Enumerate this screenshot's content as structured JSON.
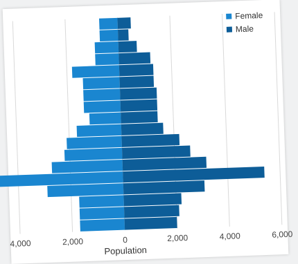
{
  "chart_data": {
    "type": "bar",
    "orientation": "horizontal-pyramid",
    "xlabel": "Population",
    "xlim": [
      -4000,
      6000
    ],
    "xticks": [
      -4000,
      -2000,
      0,
      2000,
      4000,
      6000
    ],
    "xtick_labels": [
      "4,000",
      "2,000",
      "0",
      "2,000",
      "4,000",
      "6,000"
    ],
    "grid": "vertical",
    "legend_position": "top-right",
    "series": [
      {
        "name": "Female",
        "color": "#1a86d0",
        "values": [
          -700,
          -700,
          -900,
          -900,
          -1800,
          -1400,
          -1400,
          -1400,
          -1200,
          -1700,
          -2100,
          -2200,
          -2700,
          -5000,
          -2900,
          -1700,
          -1700,
          -1700
        ]
      },
      {
        "name": "Male",
        "color": "#0d5d98",
        "values": [
          500,
          400,
          700,
          1200,
          1300,
          1300,
          1400,
          1400,
          1400,
          1600,
          2200,
          2600,
          3200,
          5400,
          3100,
          2200,
          2100,
          2000
        ]
      }
    ]
  }
}
